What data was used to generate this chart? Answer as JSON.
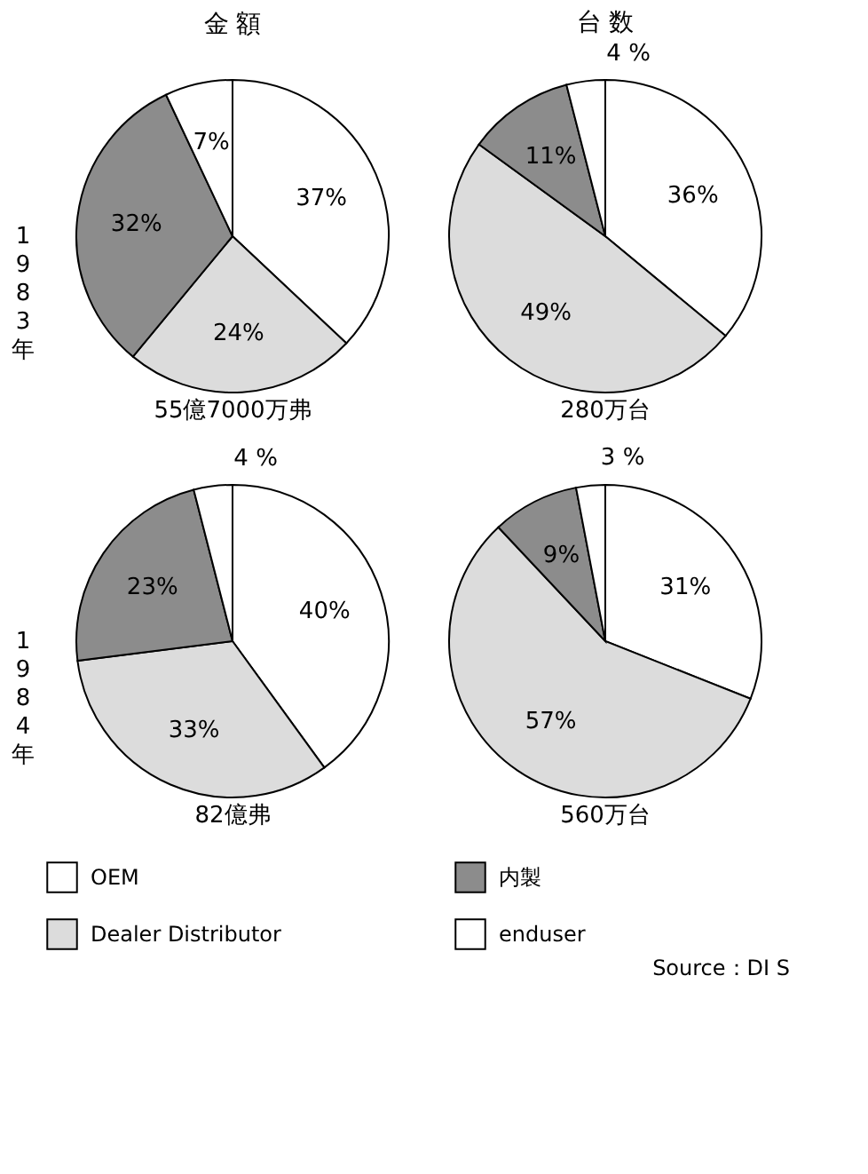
{
  "chart_data": [
    {
      "type": "pie",
      "title": "金 額",
      "ylabel": "1983年",
      "xlabel": "55億7000万弗",
      "categories": [
        "OEM",
        "Dealer Distributor",
        "内製",
        "enduser"
      ],
      "values": [
        37,
        24,
        32,
        7
      ],
      "value_labels": [
        "37%",
        "24%",
        "32%",
        "7%"
      ],
      "colors": [
        "#ffffff",
        "#dcdcdc",
        "#8c8c8c",
        "#ffffff"
      ],
      "legend": "bottom"
    },
    {
      "type": "pie",
      "title": "台 数",
      "xlabel": "280万台",
      "categories": [
        null,
        null,
        null,
        null
      ],
      "values": [
        36,
        49,
        11,
        4
      ],
      "value_labels": [
        "36%",
        "49%",
        "11%",
        "4 %"
      ],
      "colors": [
        "#ffffff",
        "#dcdcdc",
        "#8c8c8c",
        "#ffffff"
      ]
    },
    {
      "type": "pie",
      "ylabel": "1984年",
      "xlabel": "82億弗",
      "categories": [
        null,
        null,
        null,
        null
      ],
      "values": [
        40,
        33,
        23,
        4
      ],
      "value_labels": [
        "40%",
        "33%",
        "23%",
        "4 %"
      ],
      "colors": [
        "#ffffff",
        "#dcdcdc",
        "#8c8c8c",
        "#ffffff"
      ]
    },
    {
      "type": "pie",
      "xlabel": "560万台",
      "categories": [
        null,
        null,
        null,
        null
      ],
      "values": [
        31,
        57,
        9,
        3
      ],
      "value_labels": [
        "31%",
        "57%",
        "9%",
        "3 %"
      ],
      "colors": [
        "#ffffff",
        "#dcdcdc",
        "#8c8c8c",
        "#ffffff"
      ],
      "annotations": [
        "Source：DI S"
      ]
    }
  ]
}
